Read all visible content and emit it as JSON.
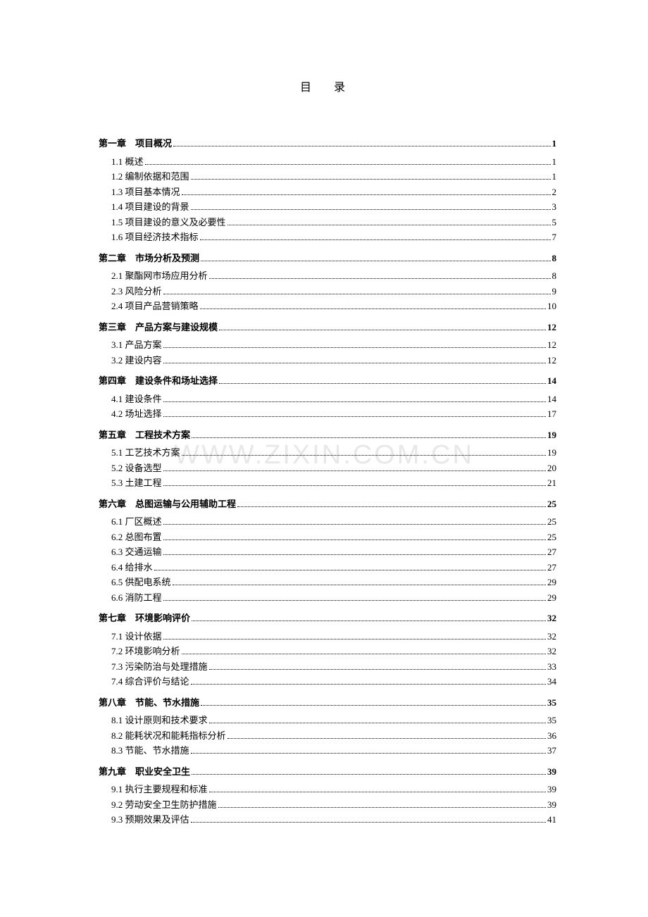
{
  "title": "目 录",
  "watermark": "WWW.ZIXIN.COM.CN",
  "toc": [
    {
      "type": "chapter",
      "label": "第一章　项目概况",
      "page": "1"
    },
    {
      "type": "sub",
      "label": "1.1 概述",
      "page": "1"
    },
    {
      "type": "sub",
      "label": "1.2 编制依据和范围",
      "page": "1"
    },
    {
      "type": "sub",
      "label": "1.3 项目基本情况",
      "page": "2"
    },
    {
      "type": "sub",
      "label": "1.4 项目建设的背景",
      "page": "3"
    },
    {
      "type": "sub",
      "label": "1.5 项目建设的意义及必要性",
      "page": "5"
    },
    {
      "type": "sub",
      "label": "1.6 项目经济技术指标",
      "page": "7"
    },
    {
      "type": "chapter",
      "label": "第二章　市场分析及预测",
      "page": "8"
    },
    {
      "type": "sub",
      "label": "2.1 聚酯网市场应用分析",
      "page": "8"
    },
    {
      "type": "sub",
      "label": "2.3 风险分析",
      "page": "9"
    },
    {
      "type": "sub",
      "label": "2.4 项目产品营销策略",
      "page": "10"
    },
    {
      "type": "chapter",
      "label": "第三章　产品方案与建设规模",
      "page": "12"
    },
    {
      "type": "sub",
      "label": "3.1 产品方案",
      "page": "12"
    },
    {
      "type": "sub",
      "label": "3.2 建设内容",
      "page": "12"
    },
    {
      "type": "chapter",
      "label": "第四章　建设条件和场址选择",
      "page": "14"
    },
    {
      "type": "sub",
      "label": "4.1 建设条件",
      "page": "14"
    },
    {
      "type": "sub",
      "label": "4.2 场址选择",
      "page": "17"
    },
    {
      "type": "chapter",
      "label": "第五章　工程技术方案",
      "page": "19"
    },
    {
      "type": "sub",
      "label": "5.1 工艺技术方案",
      "page": "19"
    },
    {
      "type": "sub",
      "label": "5.2 设备选型",
      "page": "20"
    },
    {
      "type": "sub",
      "label": "5.3 土建工程",
      "page": "21"
    },
    {
      "type": "chapter",
      "label": "第六章　总图运输与公用辅助工程",
      "page": "25"
    },
    {
      "type": "sub",
      "label": "6.1 厂区概述",
      "page": "25"
    },
    {
      "type": "sub",
      "label": "6.2 总图布置",
      "page": "25"
    },
    {
      "type": "sub",
      "label": "6.3 交通运输",
      "page": "27"
    },
    {
      "type": "sub",
      "label": "6.4 给排水",
      "page": "27"
    },
    {
      "type": "sub",
      "label": "6.5 供配电系统",
      "page": "29"
    },
    {
      "type": "sub",
      "label": "6.6 消防工程",
      "page": "29"
    },
    {
      "type": "chapter",
      "label": "第七章　环境影响评价",
      "page": "32"
    },
    {
      "type": "sub",
      "label": "7.1 设计依据",
      "page": "32"
    },
    {
      "type": "sub",
      "label": "7.2 环境影响分析",
      "page": "32"
    },
    {
      "type": "sub",
      "label": "7.3 污染防治与处理措施",
      "page": "33"
    },
    {
      "type": "sub",
      "label": "7.4 综合评价与结论",
      "page": "34"
    },
    {
      "type": "chapter",
      "label": "第八章　节能、节水措施",
      "page": "35"
    },
    {
      "type": "sub",
      "label": "8.1 设计原则和技术要求",
      "page": "35"
    },
    {
      "type": "sub",
      "label": "8.2 能耗状况和能耗指标分析",
      "page": "36"
    },
    {
      "type": "sub",
      "label": "8.3 节能、节水措施",
      "page": "37"
    },
    {
      "type": "chapter",
      "label": "第九章　职业安全卫生",
      "page": "39"
    },
    {
      "type": "sub",
      "label": "9.1 执行主要规程和标准",
      "page": "39"
    },
    {
      "type": "sub",
      "label": "9.2 劳动安全卫生防护措施",
      "page": "39"
    },
    {
      "type": "sub",
      "label": "9.3 预期效果及评估",
      "page": "41"
    }
  ]
}
